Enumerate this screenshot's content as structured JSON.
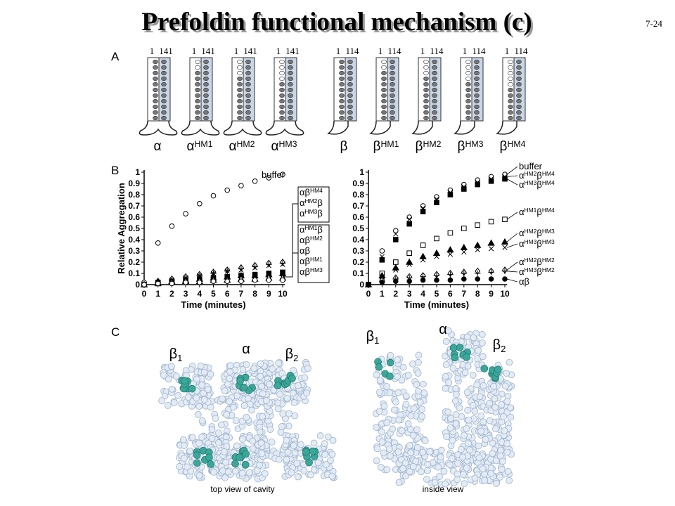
{
  "header": {
    "title": "Prefoldin functional mechanism (c)",
    "slide_number": "7-24"
  },
  "panel_a": {
    "label": "A",
    "subunits": [
      {
        "start": "1",
        "end": "141",
        "name": [
          "α"
        ]
      },
      {
        "start": "1",
        "end": "141",
        "name": [
          "α",
          "HM1"
        ]
      },
      {
        "start": "1",
        "end": "141",
        "name": [
          "α",
          "HM2"
        ]
      },
      {
        "start": "1",
        "end": "141",
        "name": [
          "α",
          "HM3"
        ]
      },
      {
        "start": "1",
        "end": "114",
        "name": [
          "β"
        ]
      },
      {
        "start": "1",
        "end": "114",
        "name": [
          "β",
          "HM1"
        ]
      },
      {
        "start": "1",
        "end": "114",
        "name": [
          "β",
          "HM2"
        ]
      },
      {
        "start": "1",
        "end": "114",
        "name": [
          "β",
          "HM3"
        ]
      },
      {
        "start": "1",
        "end": "114",
        "name": [
          "β",
          "HM4"
        ]
      }
    ]
  },
  "panel_b": {
    "label": "B",
    "charts": [
      {
        "type": "scatter",
        "y_label": "Relative Aggregation",
        "x_label": "Time (minutes)",
        "xlim": [
          0,
          10
        ],
        "xticks": [
          0,
          1,
          2,
          3,
          4,
          5,
          6,
          7,
          8,
          9,
          10
        ],
        "ylim": [
          0,
          1
        ],
        "yticks": [
          0,
          0.1,
          0.2,
          0.3,
          0.4,
          0.5,
          0.6,
          0.7,
          0.8,
          0.9,
          1
        ],
        "x": [
          0,
          1,
          2,
          3,
          4,
          5,
          6,
          7,
          8,
          9,
          10
        ],
        "series": [
          {
            "name": [
              "buffer"
            ],
            "marker": "circle-open",
            "values": [
              0.02,
              0.37,
              0.52,
              0.63,
              0.72,
              0.79,
              0.84,
              0.88,
              0.92,
              0.95,
              0.98
            ]
          },
          {
            "name": [
              "αβ",
              "HM4"
            ],
            "marker": "diamond-open",
            "values": [
              0,
              0.03,
              0.05,
              0.07,
              0.09,
              0.11,
              0.13,
              0.15,
              0.17,
              0.19,
              0.2
            ]
          },
          {
            "name": [
              "α",
              "HM2",
              "β"
            ],
            "marker": "plus",
            "values": [
              0,
              0.02,
              0.04,
              0.06,
              0.08,
              0.1,
              0.12,
              0.14,
              0.16,
              0.18,
              0.19
            ]
          },
          {
            "name": [
              "α",
              "HM3",
              "β"
            ],
            "marker": "cross",
            "values": [
              0,
              0.02,
              0.04,
              0.06,
              0.08,
              0.1,
              0.12,
              0.13,
              0.15,
              0.17,
              0.18
            ]
          },
          {
            "name": [
              "α",
              "HM1",
              "β"
            ],
            "marker": "square-filled",
            "values": [
              0,
              0.02,
              0.03,
              0.04,
              0.05,
              0.06,
              0.07,
              0.08,
              0.09,
              0.1,
              0.11
            ]
          },
          {
            "name": [
              "αβ",
              "HM2"
            ],
            "marker": "triangle-filled",
            "values": [
              0,
              0.02,
              0.03,
              0.04,
              0.05,
              0.06,
              0.07,
              0.08,
              0.08,
              0.09,
              0.1
            ]
          },
          {
            "name": [
              "αβ"
            ],
            "marker": "circle-filled",
            "values": [
              0,
              0.02,
              0.03,
              0.04,
              0.05,
              0.06,
              0.06,
              0.07,
              0.08,
              0.08,
              0.09
            ]
          },
          {
            "name": [
              "αβ",
              "HM1"
            ],
            "marker": "triangle-open",
            "values": [
              0,
              0.01,
              0.02,
              0.03,
              0.03,
              0.04,
              0.04,
              0.05,
              0.05,
              0.06,
              0.06
            ]
          },
          {
            "name": [
              "αβ",
              "HM3"
            ],
            "marker": "circle-open",
            "values": [
              0,
              0.01,
              0.01,
              0.02,
              0.02,
              0.03,
              0.03,
              0.03,
              0.04,
              0.04,
              0.04
            ]
          }
        ]
      },
      {
        "type": "scatter",
        "x_label": "Time (minutes)",
        "xlim": [
          0,
          10
        ],
        "xticks": [
          0,
          1,
          2,
          3,
          4,
          5,
          6,
          7,
          8,
          9,
          10
        ],
        "ylim": [
          0,
          1
        ],
        "yticks": [
          0,
          0.1,
          0.2,
          0.3,
          0.4,
          0.5,
          0.6,
          0.7,
          0.8,
          0.9,
          1
        ],
        "x": [
          0,
          1,
          2,
          3,
          4,
          5,
          6,
          7,
          8,
          9,
          10
        ],
        "series": [
          {
            "name": [
              "buffer"
            ],
            "marker": "circle-open",
            "values": [
              0,
              0.3,
              0.48,
              0.6,
              0.7,
              0.78,
              0.84,
              0.89,
              0.93,
              0.96,
              0.98
            ]
          },
          {
            "name": [
              "α",
              "HM2",
              "β",
              "HM4"
            ],
            "marker": "cross",
            "values": [
              0,
              0.25,
              0.45,
              0.58,
              0.68,
              0.76,
              0.82,
              0.87,
              0.91,
              0.94,
              0.96
            ]
          },
          {
            "name": [
              "α",
              "HM3",
              "β",
              "HM4"
            ],
            "marker": "square-filled",
            "values": [
              0,
              0.22,
              0.4,
              0.54,
              0.65,
              0.73,
              0.8,
              0.85,
              0.89,
              0.92,
              0.94
            ]
          },
          {
            "name": [
              "α",
              "HM1",
              "β",
              "HM4"
            ],
            "marker": "square-open",
            "values": [
              0,
              0.1,
              0.2,
              0.28,
              0.35,
              0.41,
              0.46,
              0.5,
              0.53,
              0.56,
              0.58
            ]
          },
          {
            "name": [
              "α",
              "HM2",
              "β",
              "HM3"
            ],
            "marker": "triangle-filled",
            "values": [
              0,
              0.08,
              0.15,
              0.2,
              0.25,
              0.28,
              0.31,
              0.33,
              0.35,
              0.37,
              0.38
            ]
          },
          {
            "name": [
              "α",
              "HM3",
              "β",
              "HM3"
            ],
            "marker": "cross",
            "values": [
              0,
              0.07,
              0.13,
              0.18,
              0.22,
              0.25,
              0.27,
              0.29,
              0.31,
              0.32,
              0.33
            ]
          },
          {
            "name": [
              "α",
              "HM2",
              "β",
              "HM2"
            ],
            "marker": "diamond-open",
            "values": [
              0,
              0.04,
              0.06,
              0.07,
              0.08,
              0.09,
              0.1,
              0.11,
              0.12,
              0.12,
              0.13
            ]
          },
          {
            "name": [
              "α",
              "HM3",
              "β",
              "HM2"
            ],
            "marker": "plus",
            "values": [
              0,
              0.03,
              0.05,
              0.06,
              0.07,
              0.08,
              0.09,
              0.1,
              0.1,
              0.11,
              0.12
            ]
          },
          {
            "name": [
              "αβ"
            ],
            "marker": "circle-filled",
            "values": [
              0,
              0.02,
              0.03,
              0.03,
              0.04,
              0.04,
              0.04,
              0.05,
              0.05,
              0.05,
              0.05
            ]
          }
        ]
      }
    ]
  },
  "panel_c": {
    "label": "C",
    "views": [
      {
        "caption": "top view of cavity",
        "labels": [
          [
            "β",
            "1"
          ],
          [
            "α"
          ],
          [
            "β",
            "2"
          ]
        ]
      },
      {
        "caption": "inside view",
        "labels": [
          [
            "β",
            "1"
          ],
          [
            "α"
          ],
          [
            "β",
            "2"
          ]
        ]
      }
    ]
  }
}
